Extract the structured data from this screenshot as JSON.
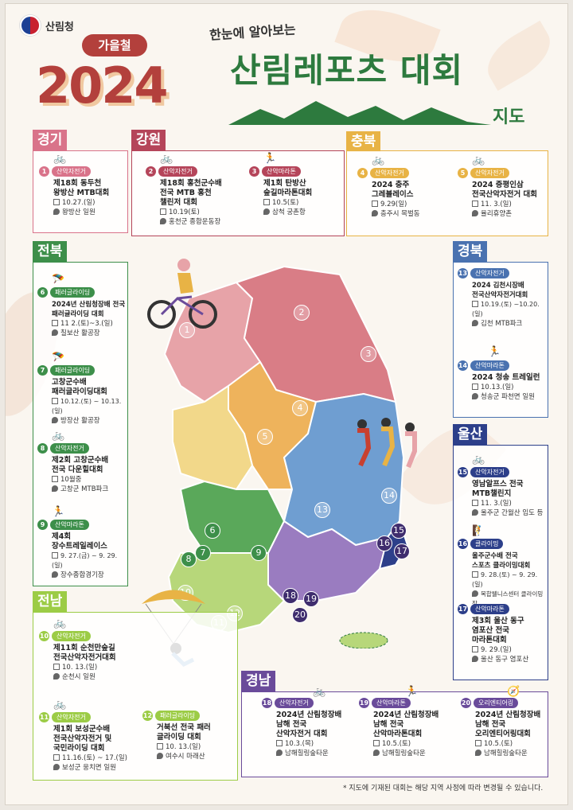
{
  "header": {
    "logo_text": "산림청",
    "season_badge": "가을철",
    "year": "2024",
    "subtitle": "한눈에 알아보는",
    "title": "산림레포츠 대회",
    "title_suffix": "지도"
  },
  "colors": {
    "gyeonggi": "#d9738a",
    "gangwon": "#b5455a",
    "chungbuk": "#e8b345",
    "jeonbuk": "#3d8f4a",
    "gyeongbuk": "#4a72b0",
    "ulsan": "#2d3f8a",
    "jeonnam": "#9ccc46",
    "gyeongnam": "#6a4b9a"
  },
  "regions": {
    "gyeonggi": {
      "label": "경기",
      "events": [
        {
          "num": "1",
          "type": "산악자전거",
          "icon": "bike-icon",
          "name": "제18회 동두천\n왕방산 MTB대회",
          "date": "10.27.(일)",
          "place": "왕방산 일원"
        }
      ]
    },
    "gangwon": {
      "label": "강원",
      "events": [
        {
          "num": "2",
          "type": "산악자전거",
          "icon": "bike-icon",
          "name": "제18회 홍천군수배\n전국 MTB 홍천\n챌린저 대회",
          "date": "10.19(토)",
          "place": "홍천군 종합운동장"
        },
        {
          "num": "3",
          "type": "산악마라톤",
          "icon": "runner-icon",
          "name": "제1회 탄방산\n숲길마라톤대회",
          "date": "10.5(토)",
          "place": "삼척 궁촌항"
        }
      ]
    },
    "chungbuk": {
      "label": "충북",
      "events": [
        {
          "num": "4",
          "type": "산악자전거",
          "icon": "bike-icon",
          "name": "2024 충주\n그레블레이스",
          "date": "9.29(일)",
          "place": "충주시 목벌동"
        },
        {
          "num": "5",
          "type": "산악자전거",
          "icon": "bike-icon",
          "name": "2024 증평인삼\n전국산악자전거 대회",
          "date": "11. 3.(일)",
          "place": "율리휴양촌"
        }
      ]
    },
    "jeonbuk": {
      "label": "전북",
      "events": [
        {
          "num": "6",
          "type": "패러글라이딩",
          "icon": "paraglider-icon",
          "name": "2024년 산림청장배 전국\n패러글라이딩 대회",
          "date": "11 2.(토)~3.(일)",
          "place": "칠보산 활공장"
        },
        {
          "num": "7",
          "type": "패러글라이딩",
          "icon": "paraglider-icon",
          "name": "고창군수배\n패러글라이딩대회",
          "date": "10.12.(토) ~ 10.13.(일)",
          "place": "방장산 활공장"
        },
        {
          "num": "8",
          "type": "산악자전거",
          "icon": "bike-icon",
          "name": "제2회 고창군수배\n전국 다운힐대회",
          "date": "10월중",
          "place": "고창군 MTB파크"
        },
        {
          "num": "9",
          "type": "산악마라톤",
          "icon": "runner-icon",
          "name": "제4회\n장수트레일레이스",
          "date": "9. 27.(금) ~ 9. 29.(일)",
          "place": "장수종합경기장"
        }
      ]
    },
    "gyeongbuk": {
      "label": "경북",
      "events": [
        {
          "num": "13",
          "type": "산악자전거",
          "icon": "bike-icon",
          "name": "2024 김천시장배\n전국산악자전거대회",
          "date": "10.19.(토) ~10.20.(일)",
          "place": "김천 MTB파크"
        },
        {
          "num": "14",
          "type": "산악마라톤",
          "icon": "runner-icon",
          "name": "2024 청송 트레일런",
          "date": "10.13.(일)",
          "place": "청송군 파천면 일원"
        }
      ]
    },
    "ulsan": {
      "label": "울산",
      "events": [
        {
          "num": "15",
          "type": "산악자전거",
          "icon": "bike-icon",
          "name": "영남알프스 전국\nMTB챌린지",
          "date": "11. 3.(일)",
          "place": "울주군 간월산 임도 등"
        },
        {
          "num": "16",
          "type": "클라이밍",
          "icon": "climber-icon",
          "name": "울주군수배 전국\n스포츠 클라이밍대회",
          "date": "9. 28.(토) ~ 9. 29.(일)",
          "place": "복합웰니스센터 클라이밍장"
        },
        {
          "num": "17",
          "type": "산악마라톤",
          "icon": "runner-icon",
          "name": "제3회 울산 동구\n염포산 전국\n마라톤대회",
          "date": "9. 29.(일)",
          "place": "울산 동구 염포산"
        }
      ]
    },
    "jeonnam": {
      "label": "전남",
      "events": [
        {
          "num": "10",
          "type": "산악자전거",
          "icon": "bike-icon",
          "name": "제11회 순천만숲길\n전국산악자전거대회",
          "date": "10. 13.(일)",
          "place": "순천시 일원"
        },
        {
          "num": "11",
          "type": "산악자전거",
          "icon": "bike-icon",
          "name": "제1회 보성군수배\n전국산악자전거 및\n국민라이딩 대회",
          "date": "11.16.(토) ~ 17.(일)",
          "place": "보성군 웅치면 일원"
        },
        {
          "num": "12",
          "type": "패러글라이딩",
          "icon": "paraglider-icon",
          "name": "거북선 전국 패러\n글라이딩 대회",
          "date": "10. 13.(일)",
          "place": "여수시 마래산"
        }
      ]
    },
    "gyeongnam": {
      "label": "경남",
      "events": [
        {
          "num": "18",
          "type": "산악자전거",
          "icon": "bike-icon",
          "name": "2024년 산림청장배\n남해 전국\n산악자전거 대회",
          "date": "10.3.(목)",
          "place": "남해힐링숲타운"
        },
        {
          "num": "19",
          "type": "산악마라톤",
          "icon": "runner-icon",
          "name": "2024년 산림청장배\n남해 전국\n산악마라톤대회",
          "date": "10.5.(토)",
          "place": "남해힐링숲타운"
        },
        {
          "num": "20",
          "type": "오리엔티어링",
          "icon": "compass-icon",
          "name": "2024년 산림청장배\n남해 전국\n오리엔티어링대회",
          "date": "10.5.(토)",
          "place": "남해힐링숲타운"
        }
      ]
    }
  },
  "map_pins": [
    "1",
    "2",
    "3",
    "4",
    "5",
    "6",
    "7",
    "8",
    "9",
    "10",
    "11",
    "12",
    "13",
    "14",
    "15",
    "16",
    "17",
    "18",
    "19",
    "20"
  ],
  "footnote": "* 지도에 기재된 대회는 해당 지역 사정에 따라 변경될 수 있습니다."
}
